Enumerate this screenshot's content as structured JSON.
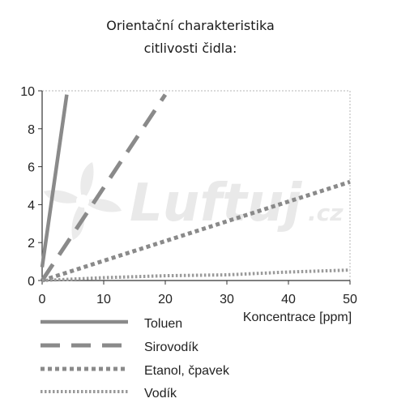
{
  "chart_data": {
    "type": "line",
    "title_lines": [
      "Orientační charakteristika",
      "citlivosti čidla:"
    ],
    "xlabel": "Koncentrace [ppm]",
    "ylabel": "",
    "xlim": [
      0,
      50
    ],
    "ylim": [
      0,
      10
    ],
    "x_ticks": [
      0,
      10,
      20,
      30,
      40,
      50
    ],
    "y_ticks": [
      0,
      2,
      4,
      6,
      8,
      10
    ],
    "grid": false,
    "legend_position": "bottom-left",
    "series": [
      {
        "name": "Toluen",
        "style": "solid",
        "color": "#8a8a8a",
        "points": [
          [
            0,
            0.7
          ],
          [
            4,
            9.8
          ]
        ]
      },
      {
        "name": "Sirovodík",
        "style": "dashed",
        "color": "#8a8a8a",
        "points": [
          [
            0,
            0
          ],
          [
            20,
            9.8
          ]
        ]
      },
      {
        "name": "Etanol, čpavek",
        "style": "dotted",
        "color": "#8a8a8a",
        "points": [
          [
            0,
            0
          ],
          [
            50,
            5.2
          ]
        ]
      },
      {
        "name": "Vodík",
        "style": "fine-dotted",
        "color": "#9a9a9a",
        "points": [
          [
            0,
            0
          ],
          [
            10,
            0.15
          ],
          [
            20,
            0.25
          ],
          [
            30,
            0.3
          ],
          [
            40,
            0.45
          ],
          [
            50,
            0.55
          ]
        ]
      }
    ]
  },
  "watermark": {
    "brand": "Luftuj",
    "suffix": ".cz",
    "icon": "fan-icon",
    "color": "#e9e9e9"
  }
}
